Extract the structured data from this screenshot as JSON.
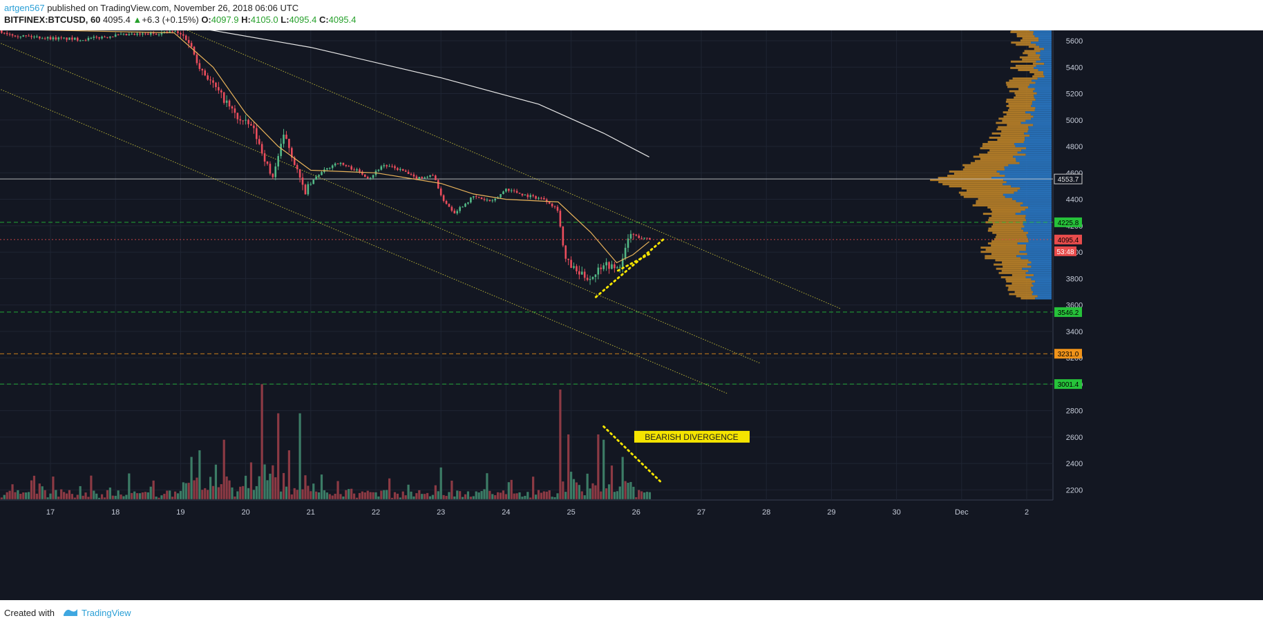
{
  "header": {
    "author": "artgen567",
    "published_text": "published on TradingView.com, November 26, 2018 06:06 UTC",
    "symbol": "BITFINEX:BTCUSD, 60",
    "last": "4095.4",
    "change_arrow": "▲",
    "change": "+6.3 (+0.15%)",
    "o_label": "O:",
    "o_value": "4097.9",
    "h_label": "H:",
    "h_value": "4105.0",
    "l_label": "L:",
    "l_value": "4095.4",
    "c_label": "C:",
    "c_value": "4095.4"
  },
  "footer": {
    "created_with": "Created with",
    "brand": "TradingView"
  },
  "chart_data": {
    "type": "candlestick",
    "x_ticks": [
      "17",
      "18",
      "19",
      "20",
      "21",
      "22",
      "23",
      "24",
      "25",
      "26",
      "27",
      "28",
      "29",
      "30",
      "Dec",
      "2"
    ],
    "ylim": [
      2100,
      5750
    ],
    "y_ticks": [
      5600,
      5400,
      5200,
      5000,
      4800,
      4600,
      4400,
      4200,
      4000,
      3800,
      3600,
      3400,
      3200,
      3000,
      2800,
      2600,
      2400,
      2200
    ],
    "price_anchors": [
      [
        16.0,
        5690
      ],
      [
        16.5,
        5640
      ],
      [
        17.0,
        5620
      ],
      [
        17.5,
        5610
      ],
      [
        18.0,
        5640
      ],
      [
        18.5,
        5650
      ],
      [
        18.9,
        5670
      ],
      [
        19.1,
        5620
      ],
      [
        19.3,
        5400
      ],
      [
        19.6,
        5200
      ],
      [
        19.9,
        5000
      ],
      [
        20.1,
        4950
      ],
      [
        20.3,
        4700
      ],
      [
        20.4,
        4550
      ],
      [
        20.6,
        4900
      ],
      [
        20.8,
        4600
      ],
      [
        20.9,
        4450
      ],
      [
        21.1,
        4580
      ],
      [
        21.4,
        4680
      ],
      [
        21.7,
        4620
      ],
      [
        21.9,
        4560
      ],
      [
        22.1,
        4660
      ],
      [
        22.4,
        4620
      ],
      [
        22.6,
        4560
      ],
      [
        22.9,
        4580
      ],
      [
        23.0,
        4420
      ],
      [
        23.2,
        4300
      ],
      [
        23.5,
        4420
      ],
      [
        23.8,
        4380
      ],
      [
        24.0,
        4480
      ],
      [
        24.3,
        4430
      ],
      [
        24.6,
        4400
      ],
      [
        24.8,
        4320
      ],
      [
        24.9,
        3950
      ],
      [
        25.1,
        3840
      ],
      [
        25.3,
        3800
      ],
      [
        25.5,
        3920
      ],
      [
        25.7,
        3870
      ],
      [
        25.8,
        3950
      ],
      [
        25.9,
        4140
      ],
      [
        26.0,
        4120
      ],
      [
        26.15,
        4100
      ],
      [
        26.25,
        4095
      ]
    ],
    "moving_average_yellow": [
      [
        16.0,
        5690
      ],
      [
        18.9,
        5660
      ],
      [
        19.5,
        5400
      ],
      [
        20.0,
        5050
      ],
      [
        20.5,
        4800
      ],
      [
        21.0,
        4620
      ],
      [
        22.0,
        4600
      ],
      [
        23.0,
        4520
      ],
      [
        23.5,
        4440
      ],
      [
        24.0,
        4400
      ],
      [
        24.8,
        4380
      ],
      [
        25.3,
        4150
      ],
      [
        25.7,
        3920
      ],
      [
        25.95,
        3980
      ],
      [
        26.2,
        4080
      ]
    ],
    "moving_average_white": [
      [
        19.0,
        5720
      ],
      [
        21.0,
        5550
      ],
      [
        23.0,
        5320
      ],
      [
        24.5,
        5120
      ],
      [
        25.5,
        4900
      ],
      [
        26.2,
        4720
      ]
    ],
    "horizontal_levels": [
      {
        "price": 4553.7,
        "label": "4553.7",
        "color": "#d0d0d0",
        "style": "solid"
      },
      {
        "price": 4225.8,
        "label": "4225.8",
        "color": "#26c23a",
        "style": "dashed"
      },
      {
        "price": 4095.4,
        "label": "4095.4",
        "color": "#e84c4c",
        "style": "dotted"
      },
      {
        "price": 3546.2,
        "label": "3546.2",
        "color": "#26c23a",
        "style": "dashed"
      },
      {
        "price": 3231.0,
        "label": "3231.0",
        "color": "#f0931a",
        "style": "dashed"
      },
      {
        "price": 3001.4,
        "label": "3001.4",
        "color": "#26c23a",
        "style": "dashed"
      }
    ],
    "countdown_label": "53:48",
    "channel_lines": [
      {
        "p1": [
          19.0,
          5700
        ],
        "p2": [
          29.15,
          3570
        ]
      },
      {
        "p1": [
          16.0,
          5630
        ],
        "p2": [
          27.9,
          3160
        ]
      },
      {
        "p1": [
          16.0,
          5280
        ],
        "p2": [
          27.4,
          2930
        ]
      }
    ],
    "triangle_lines": [
      {
        "p1": [
          25.38,
          3660
        ],
        "p2": [
          26.45,
          4110
        ]
      },
      {
        "p1": [
          25.72,
          3860
        ],
        "p2": [
          26.22,
          3990
        ]
      }
    ],
    "volume_divergence_line": {
      "p1": [
        25.5,
        2680
      ],
      "p2": [
        26.38,
        2260
      ]
    },
    "annotation": "BEARISH DIVERGENCE",
    "volume_spikes": [
      [
        19.15,
        2450
      ],
      [
        19.3,
        2500
      ],
      [
        19.65,
        2580
      ],
      [
        20.25,
        3000
      ],
      [
        20.5,
        2780
      ],
      [
        20.65,
        2500
      ],
      [
        20.85,
        2780
      ],
      [
        23.0,
        2370
      ],
      [
        24.85,
        2960
      ],
      [
        24.95,
        2620
      ],
      [
        25.4,
        2620
      ],
      [
        25.5,
        2580
      ],
      [
        25.8,
        2450
      ]
    ],
    "volume_profile": "buy/sell volume by price shown on right side",
    "colors": {
      "background": "#131722",
      "grid": "#1f2533",
      "up": "#53b987",
      "down": "#eb4d5c",
      "vol_up": "#3c7c66",
      "vol_down": "#8c3a44",
      "ma_yellow": "#e9b35a",
      "ma_white": "#e8e8e8",
      "channel": "#c8c23a",
      "triangle": "#f5e400",
      "vp_blue": "#2a78c4",
      "vp_orange": "#c88a28"
    }
  }
}
